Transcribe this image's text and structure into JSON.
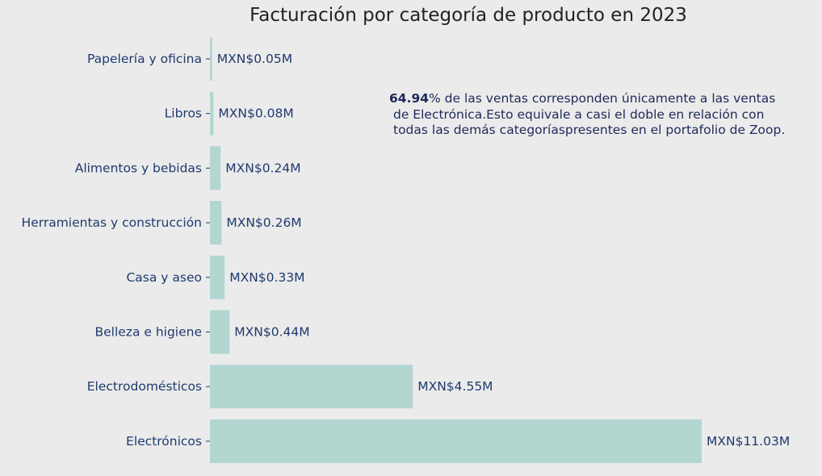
{
  "colors": {
    "background": "#ebebeb",
    "bar": "#b3d6d1",
    "text": "#1f3a6e",
    "title": "#222222",
    "annotation": "#1e2a5a"
  },
  "annotation": {
    "highlight": "64.94",
    "line1_rest": "% de las ventas corresponden únicamente a las ventas",
    "line2": "de Electrónica.Esto equivale a casi el doble en relación con",
    "line3": "todas las demás categoríaspresentes en el portafolio de Zoop."
  },
  "chart_data": {
    "type": "bar",
    "orientation": "horizontal",
    "title": "Facturación por categoría de producto en 2023",
    "xlabel": "",
    "ylabel": "",
    "grid": false,
    "xlim": [
      0,
      11.03
    ],
    "categories": [
      "Papelería y oficina",
      "Libros",
      "Alimentos y bebidas",
      "Herramientas y construcción",
      "Casa y aseo",
      "Belleza e higiene",
      "Electrodomésticos",
      "Electrónicos"
    ],
    "values": [
      0.05,
      0.08,
      0.24,
      0.26,
      0.33,
      0.44,
      4.55,
      11.03
    ],
    "labels": [
      "MXN$0.05M",
      "MXN$0.08M",
      "MXN$0.24M",
      "MXN$0.26M",
      "MXN$0.33M",
      "MXN$0.44M",
      "MXN$4.55M",
      "MXN$11.03M"
    ]
  }
}
